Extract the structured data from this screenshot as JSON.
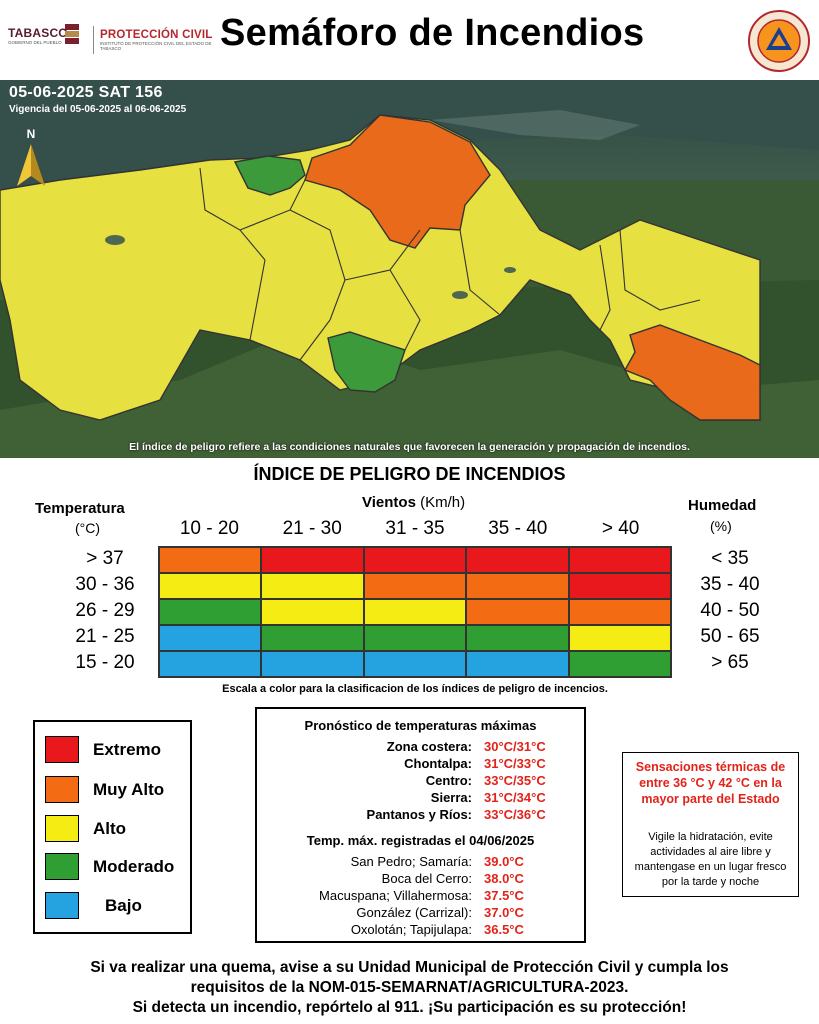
{
  "header": {
    "logo_tabasco": "TABASCO",
    "logo_tabasco_sub": "GOBIERNO DEL PUEBLO",
    "logo_pc": "PROTECCIÓN CIVIL",
    "logo_pc_sub": "INSTITUTO DE PROTECCIÓN CIVIL DEL ESTADO DE TABASCO",
    "title": "Semáforo de Incendios",
    "seal_text_top": "INSTITUTO DE PROTECCIÓN CIVIL",
    "seal_text_bottom": "TABASCO"
  },
  "map": {
    "date_line": "05-06-2025 SAT 156",
    "validity": "Vigencia del 05-06-2025 al 06-06-2025",
    "north_label": "N",
    "note": "El índice de peligro refiere a las condiciones naturales que favorecen la generación y propagación de incendios."
  },
  "index": {
    "title": "ÍNDICE DE PELIGRO DE INCENDIOS",
    "temperature_label": "Temperatura",
    "temperature_unit": "(°C)",
    "wind_label": "Vientos",
    "wind_unit": "(Km/h)",
    "humidity_label": "Humedad",
    "humidity_unit": "(%)",
    "wind_ranges": [
      "10 - 20",
      "21 - 30",
      "31 - 35",
      "35 - 40",
      "> 40"
    ],
    "temperature_ranges": [
      "> 37",
      "30 - 36",
      "26 - 29",
      "21 - 25",
      "15 - 20"
    ],
    "humidity_ranges": [
      "< 35",
      "35 - 40",
      "40 - 50",
      "50 - 65",
      "> 65"
    ],
    "matrix_levels": [
      [
        "Muy Alto",
        "Extremo",
        "Extremo",
        "Extremo",
        "Extremo"
      ],
      [
        "Alto",
        "Alto",
        "Muy Alto",
        "Muy Alto",
        "Extremo"
      ],
      [
        "Moderado",
        "Alto",
        "Alto",
        "Muy Alto",
        "Muy Alto"
      ],
      [
        "Bajo",
        "Moderado",
        "Moderado",
        "Moderado",
        "Alto"
      ],
      [
        "Bajo",
        "Bajo",
        "Bajo",
        "Bajo",
        "Moderado"
      ]
    ],
    "scale_note": "Escala a color para la clasificacion de los índices de peligro de incencios."
  },
  "levels": {
    "Extremo": "#e8181c",
    "Muy Alto": "#f36b12",
    "Alto": "#f5ec14",
    "Moderado": "#2f9e33",
    "Bajo": "#25a2e0"
  },
  "legend": [
    {
      "label": "Extremo",
      "color": "#e8181c"
    },
    {
      "label": "Muy Alto",
      "color": "#f36b12"
    },
    {
      "label": "Alto",
      "color": "#f5ec14"
    },
    {
      "label": "Moderado",
      "color": "#2f9e33"
    },
    {
      "label": "Bajo",
      "color": "#25a2e0"
    }
  ],
  "forecast": {
    "title": "Pronóstico de temperaturas máximas",
    "regions": [
      {
        "name": "Zona costera:",
        "value": "30°C/31°C"
      },
      {
        "name": "Chontalpa:",
        "value": "31°C/33°C"
      },
      {
        "name": "Centro:",
        "value": "33°C/35°C"
      },
      {
        "name": "Sierra:",
        "value": "31°C/34°C"
      },
      {
        "name": "Pantanos y Ríos:",
        "value": "33°C/36°C"
      }
    ],
    "recorded_title": "Temp. máx. registradas el 04/06/2025",
    "recorded": [
      {
        "name": "San Pedro; Samaría:",
        "value": "39.0°C"
      },
      {
        "name": "Boca del Cerro:",
        "value": "38.0°C"
      },
      {
        "name": "Macuspana; Villahermosa:",
        "value": "37.5°C"
      },
      {
        "name": "González (Carrizal):",
        "value": "37.0°C"
      },
      {
        "name": "Oxolotán; Tapijulapa:",
        "value": "36.5°C"
      }
    ]
  },
  "sensation": {
    "heading": "Sensaciones térmicas de entre 36 °C y 42 °C en la mayor parte del Estado",
    "body": "Vigile la hidratación, evite actividades al aire libre y mantengase en un lugar fresco por la tarde y noche"
  },
  "footer": {
    "line1": "Si va realizar una quema, avise a su Unidad Municipal de Protección Civil y cumpla los",
    "line2": "requisitos de la NOM-015-SEMARNAT/AGRICULTURA-2023.",
    "line3": "Si detecta un incendio, repórtelo al 911. ¡Su participación es su protección!"
  }
}
